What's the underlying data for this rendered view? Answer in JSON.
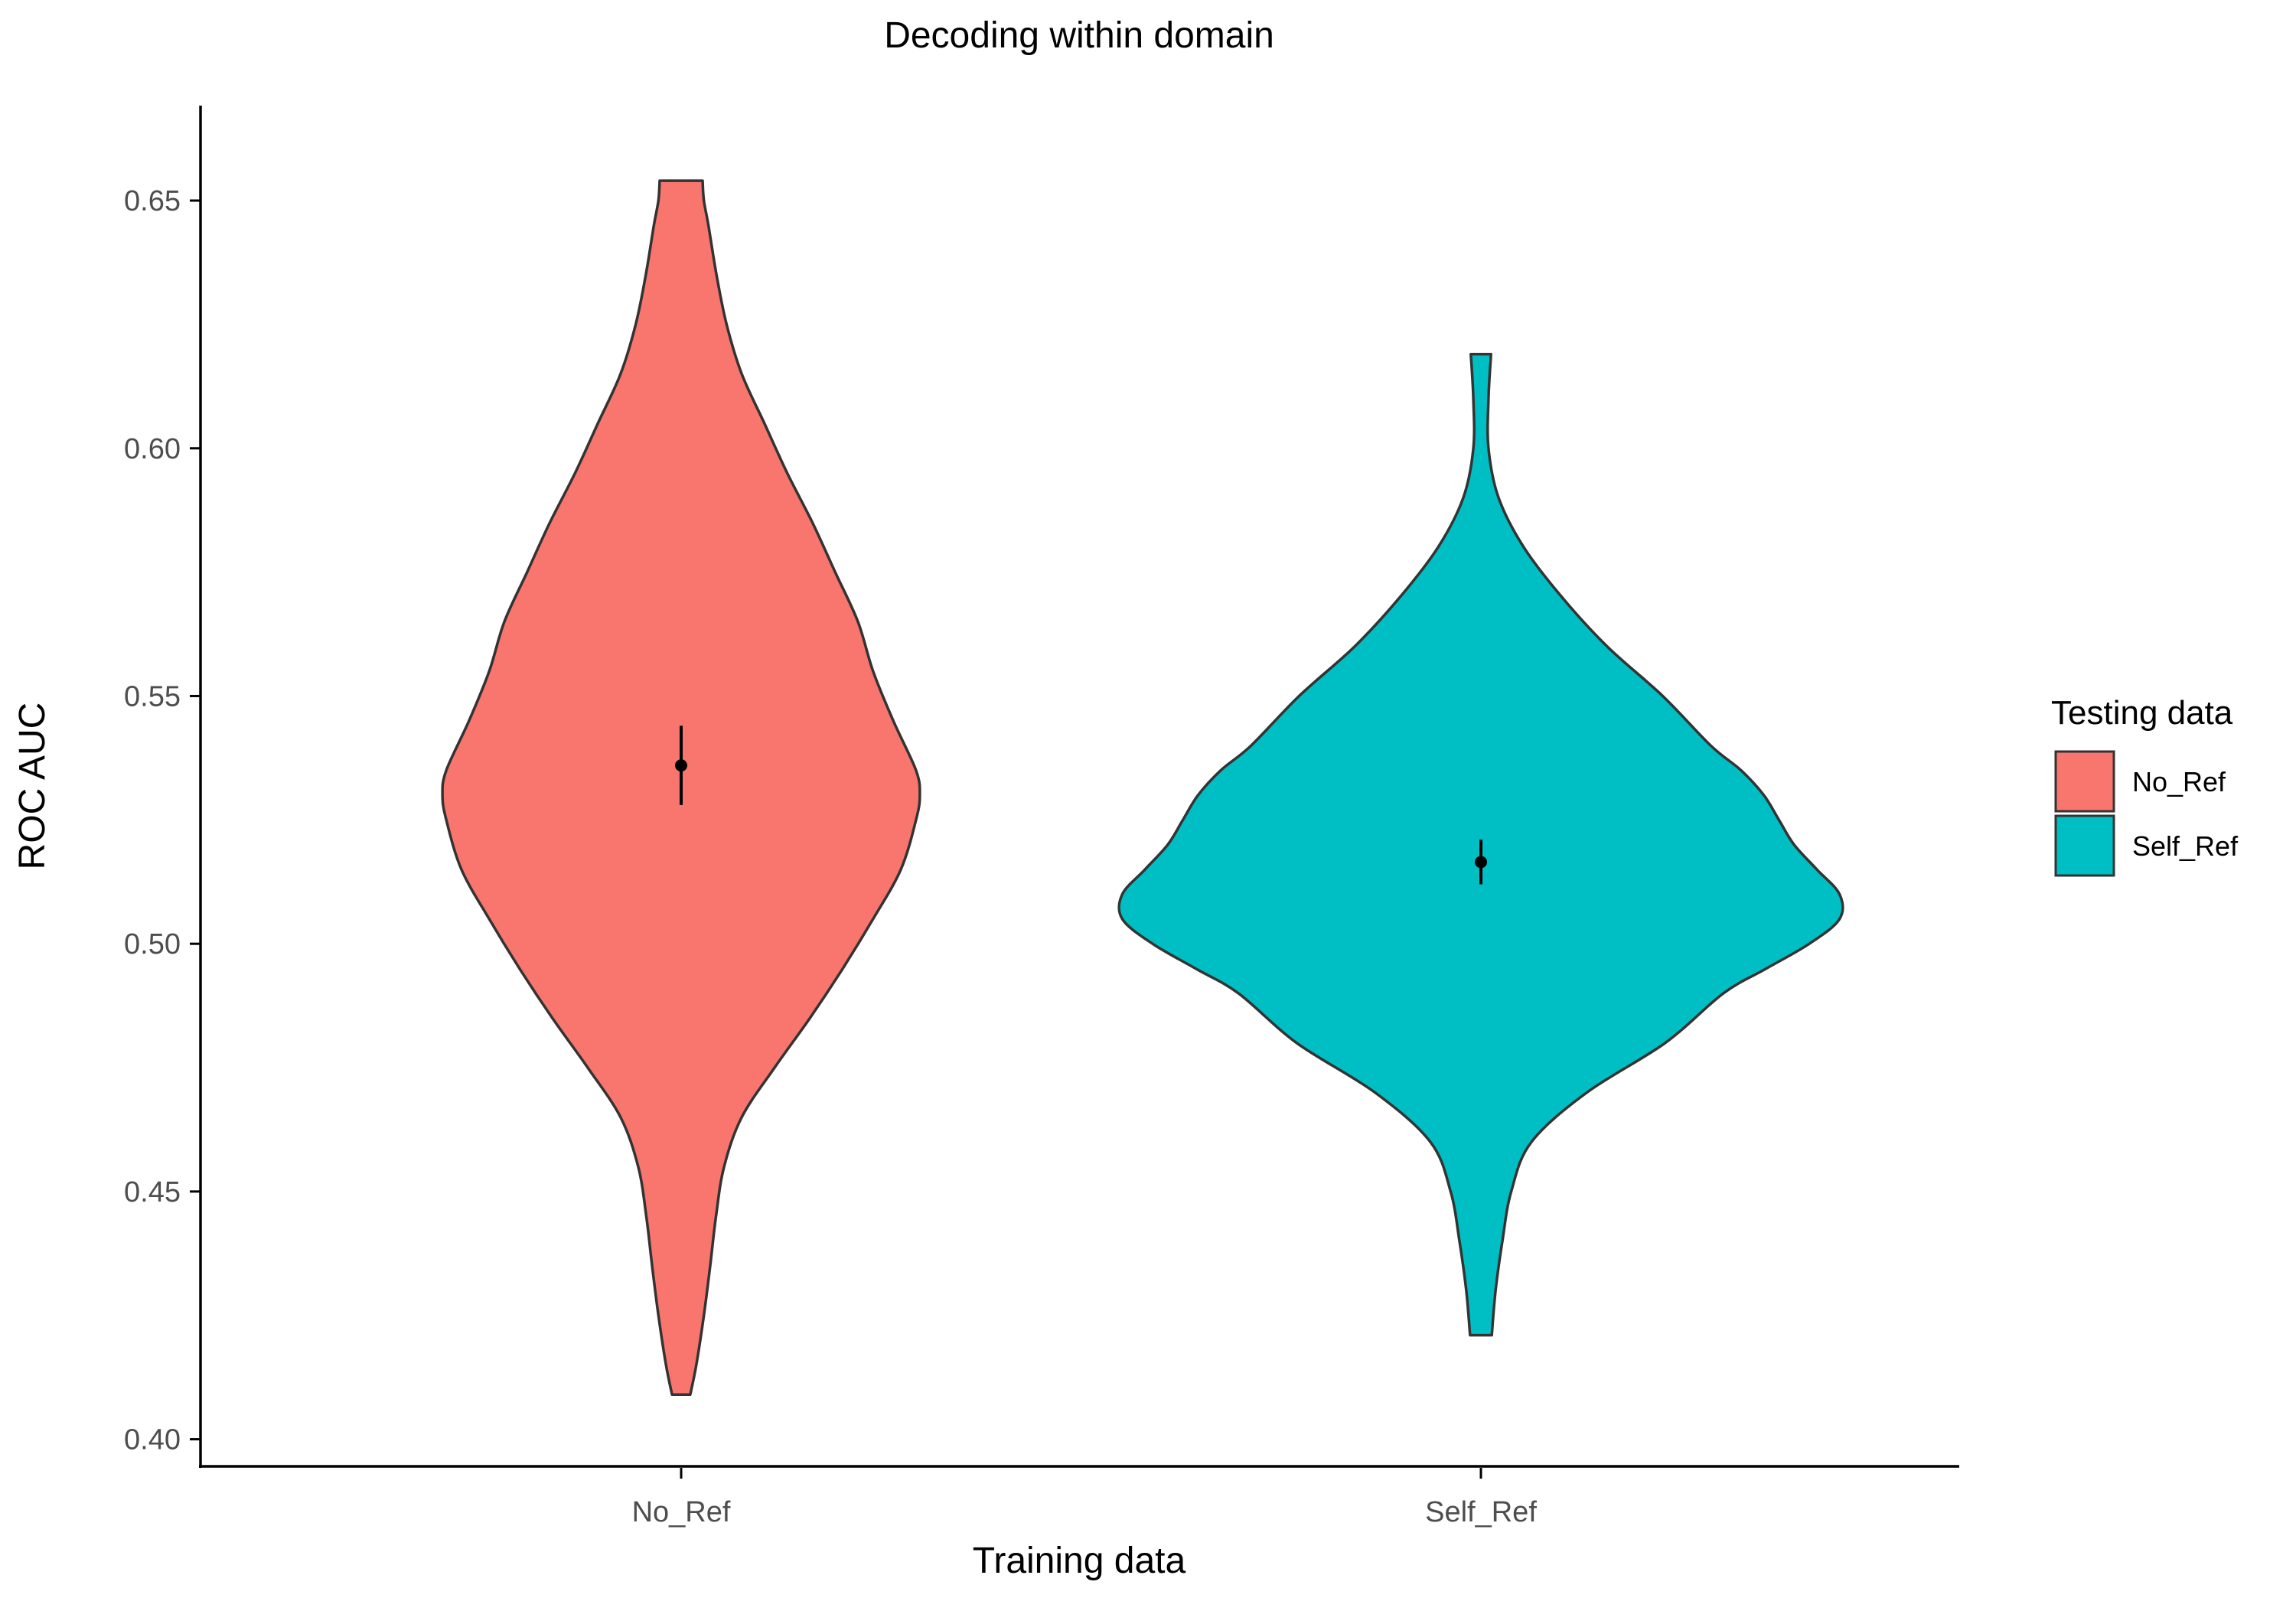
{
  "chart_data": {
    "type": "violin",
    "title": "Decoding within domain",
    "xlabel": "Training data",
    "ylabel": "ROC AUC",
    "categories": [
      "No_Ref",
      "Self_Ref"
    ],
    "ylim": [
      0.397,
      0.667
    ],
    "yticks": [
      0.4,
      0.45,
      0.5,
      0.55,
      0.6,
      0.65
    ],
    "ytick_labels": [
      "0.40",
      "0.45",
      "0.50",
      "0.55",
      "0.60",
      "0.65"
    ],
    "grid": false,
    "legend": {
      "title": "Testing data",
      "position": "right",
      "entries": [
        {
          "label": "No_Ref",
          "color": "#F8766D"
        },
        {
          "label": "Self_Ref",
          "color": "#00BFC4"
        }
      ]
    },
    "series": [
      {
        "name": "No_Ref",
        "category": "No_Ref",
        "color": "#F8766D",
        "min": 0.409,
        "max": 0.654,
        "mean": 0.536,
        "ci": [
          0.528,
          0.544
        ],
        "density_profile": [
          [
            0.409,
            0.036
          ],
          [
            0.415,
            0.06
          ],
          [
            0.425,
            0.09
          ],
          [
            0.435,
            0.115
          ],
          [
            0.445,
            0.138
          ],
          [
            0.455,
            0.17
          ],
          [
            0.465,
            0.24
          ],
          [
            0.475,
            0.37
          ],
          [
            0.485,
            0.51
          ],
          [
            0.495,
            0.64
          ],
          [
            0.505,
            0.76
          ],
          [
            0.515,
            0.87
          ],
          [
            0.525,
            0.93
          ],
          [
            0.53,
            0.945
          ],
          [
            0.535,
            0.93
          ],
          [
            0.545,
            0.84
          ],
          [
            0.555,
            0.76
          ],
          [
            0.565,
            0.7
          ],
          [
            0.575,
            0.61
          ],
          [
            0.585,
            0.52
          ],
          [
            0.595,
            0.42
          ],
          [
            0.605,
            0.33
          ],
          [
            0.615,
            0.24
          ],
          [
            0.625,
            0.18
          ],
          [
            0.635,
            0.14
          ],
          [
            0.645,
            0.108
          ],
          [
            0.65,
            0.09
          ],
          [
            0.654,
            0.085
          ]
        ]
      },
      {
        "name": "Self_Ref",
        "category": "Self_Ref",
        "color": "#00BFC4",
        "min": 0.421,
        "max": 0.619,
        "mean": 0.5165,
        "ci": [
          0.512,
          0.521
        ],
        "density_profile": [
          [
            0.421,
            0.043
          ],
          [
            0.43,
            0.058
          ],
          [
            0.44,
            0.085
          ],
          [
            0.45,
            0.12
          ],
          [
            0.46,
            0.2
          ],
          [
            0.47,
            0.42
          ],
          [
            0.48,
            0.73
          ],
          [
            0.49,
            0.96
          ],
          [
            0.495,
            1.13
          ],
          [
            0.5,
            1.3
          ],
          [
            0.505,
            1.42
          ],
          [
            0.51,
            1.42
          ],
          [
            0.515,
            1.33
          ],
          [
            0.52,
            1.24
          ],
          [
            0.525,
            1.18
          ],
          [
            0.53,
            1.12
          ],
          [
            0.535,
            1.03
          ],
          [
            0.54,
            0.91
          ],
          [
            0.55,
            0.72
          ],
          [
            0.56,
            0.5
          ],
          [
            0.57,
            0.32
          ],
          [
            0.58,
            0.17
          ],
          [
            0.59,
            0.07
          ],
          [
            0.6,
            0.03
          ],
          [
            0.61,
            0.03
          ],
          [
            0.619,
            0.04
          ]
        ]
      }
    ]
  }
}
